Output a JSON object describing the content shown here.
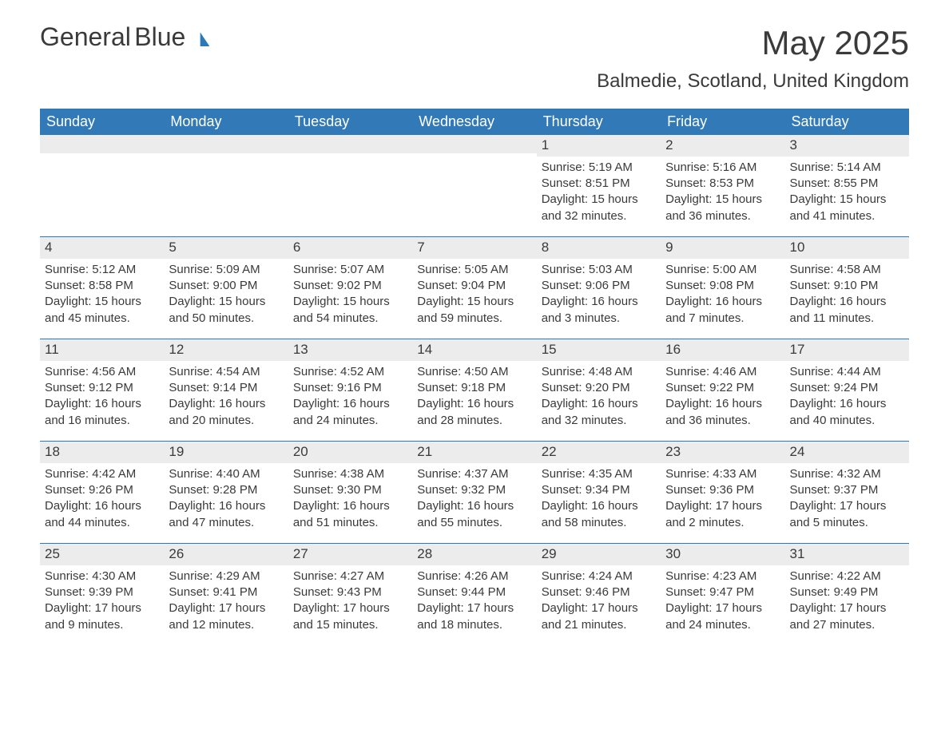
{
  "brand": {
    "name1": "General",
    "name2": "Blue",
    "accent": "#2a7ab9"
  },
  "title": "May 2025",
  "location": "Balmedie, Scotland, United Kingdom",
  "weekdays": [
    "Sunday",
    "Monday",
    "Tuesday",
    "Wednesday",
    "Thursday",
    "Friday",
    "Saturday"
  ],
  "styling": {
    "header_bg": "#327ab7",
    "header_fg": "#ffffff",
    "daynum_bg": "#ececec",
    "rule_color": "#2a7ab9",
    "body_fg": "#3a3a3a",
    "page_bg": "#ffffff",
    "month_fontsize": 42,
    "location_fontsize": 24,
    "weekday_fontsize": 18,
    "cell_fontsize": 15
  },
  "weeks": [
    [
      {
        "n": "",
        "blank": true
      },
      {
        "n": "",
        "blank": true
      },
      {
        "n": "",
        "blank": true
      },
      {
        "n": "",
        "blank": true
      },
      {
        "n": "1",
        "sunrise": "5:19 AM",
        "sunset": "8:51 PM",
        "dl1": "15 hours",
        "dl2": "and 32 minutes."
      },
      {
        "n": "2",
        "sunrise": "5:16 AM",
        "sunset": "8:53 PM",
        "dl1": "15 hours",
        "dl2": "and 36 minutes."
      },
      {
        "n": "3",
        "sunrise": "5:14 AM",
        "sunset": "8:55 PM",
        "dl1": "15 hours",
        "dl2": "and 41 minutes."
      }
    ],
    [
      {
        "n": "4",
        "sunrise": "5:12 AM",
        "sunset": "8:58 PM",
        "dl1": "15 hours",
        "dl2": "and 45 minutes."
      },
      {
        "n": "5",
        "sunrise": "5:09 AM",
        "sunset": "9:00 PM",
        "dl1": "15 hours",
        "dl2": "and 50 minutes."
      },
      {
        "n": "6",
        "sunrise": "5:07 AM",
        "sunset": "9:02 PM",
        "dl1": "15 hours",
        "dl2": "and 54 minutes."
      },
      {
        "n": "7",
        "sunrise": "5:05 AM",
        "sunset": "9:04 PM",
        "dl1": "15 hours",
        "dl2": "and 59 minutes."
      },
      {
        "n": "8",
        "sunrise": "5:03 AM",
        "sunset": "9:06 PM",
        "dl1": "16 hours",
        "dl2": "and 3 minutes."
      },
      {
        "n": "9",
        "sunrise": "5:00 AM",
        "sunset": "9:08 PM",
        "dl1": "16 hours",
        "dl2": "and 7 minutes."
      },
      {
        "n": "10",
        "sunrise": "4:58 AM",
        "sunset": "9:10 PM",
        "dl1": "16 hours",
        "dl2": "and 11 minutes."
      }
    ],
    [
      {
        "n": "11",
        "sunrise": "4:56 AM",
        "sunset": "9:12 PM",
        "dl1": "16 hours",
        "dl2": "and 16 minutes."
      },
      {
        "n": "12",
        "sunrise": "4:54 AM",
        "sunset": "9:14 PM",
        "dl1": "16 hours",
        "dl2": "and 20 minutes."
      },
      {
        "n": "13",
        "sunrise": "4:52 AM",
        "sunset": "9:16 PM",
        "dl1": "16 hours",
        "dl2": "and 24 minutes."
      },
      {
        "n": "14",
        "sunrise": "4:50 AM",
        "sunset": "9:18 PM",
        "dl1": "16 hours",
        "dl2": "and 28 minutes."
      },
      {
        "n": "15",
        "sunrise": "4:48 AM",
        "sunset": "9:20 PM",
        "dl1": "16 hours",
        "dl2": "and 32 minutes."
      },
      {
        "n": "16",
        "sunrise": "4:46 AM",
        "sunset": "9:22 PM",
        "dl1": "16 hours",
        "dl2": "and 36 minutes."
      },
      {
        "n": "17",
        "sunrise": "4:44 AM",
        "sunset": "9:24 PM",
        "dl1": "16 hours",
        "dl2": "and 40 minutes."
      }
    ],
    [
      {
        "n": "18",
        "sunrise": "4:42 AM",
        "sunset": "9:26 PM",
        "dl1": "16 hours",
        "dl2": "and 44 minutes."
      },
      {
        "n": "19",
        "sunrise": "4:40 AM",
        "sunset": "9:28 PM",
        "dl1": "16 hours",
        "dl2": "and 47 minutes."
      },
      {
        "n": "20",
        "sunrise": "4:38 AM",
        "sunset": "9:30 PM",
        "dl1": "16 hours",
        "dl2": "and 51 minutes."
      },
      {
        "n": "21",
        "sunrise": "4:37 AM",
        "sunset": "9:32 PM",
        "dl1": "16 hours",
        "dl2": "and 55 minutes."
      },
      {
        "n": "22",
        "sunrise": "4:35 AM",
        "sunset": "9:34 PM",
        "dl1": "16 hours",
        "dl2": "and 58 minutes."
      },
      {
        "n": "23",
        "sunrise": "4:33 AM",
        "sunset": "9:36 PM",
        "dl1": "17 hours",
        "dl2": "and 2 minutes."
      },
      {
        "n": "24",
        "sunrise": "4:32 AM",
        "sunset": "9:37 PM",
        "dl1": "17 hours",
        "dl2": "and 5 minutes."
      }
    ],
    [
      {
        "n": "25",
        "sunrise": "4:30 AM",
        "sunset": "9:39 PM",
        "dl1": "17 hours",
        "dl2": "and 9 minutes."
      },
      {
        "n": "26",
        "sunrise": "4:29 AM",
        "sunset": "9:41 PM",
        "dl1": "17 hours",
        "dl2": "and 12 minutes."
      },
      {
        "n": "27",
        "sunrise": "4:27 AM",
        "sunset": "9:43 PM",
        "dl1": "17 hours",
        "dl2": "and 15 minutes."
      },
      {
        "n": "28",
        "sunrise": "4:26 AM",
        "sunset": "9:44 PM",
        "dl1": "17 hours",
        "dl2": "and 18 minutes."
      },
      {
        "n": "29",
        "sunrise": "4:24 AM",
        "sunset": "9:46 PM",
        "dl1": "17 hours",
        "dl2": "and 21 minutes."
      },
      {
        "n": "30",
        "sunrise": "4:23 AM",
        "sunset": "9:47 PM",
        "dl1": "17 hours",
        "dl2": "and 24 minutes."
      },
      {
        "n": "31",
        "sunrise": "4:22 AM",
        "sunset": "9:49 PM",
        "dl1": "17 hours",
        "dl2": "and 27 minutes."
      }
    ]
  ]
}
